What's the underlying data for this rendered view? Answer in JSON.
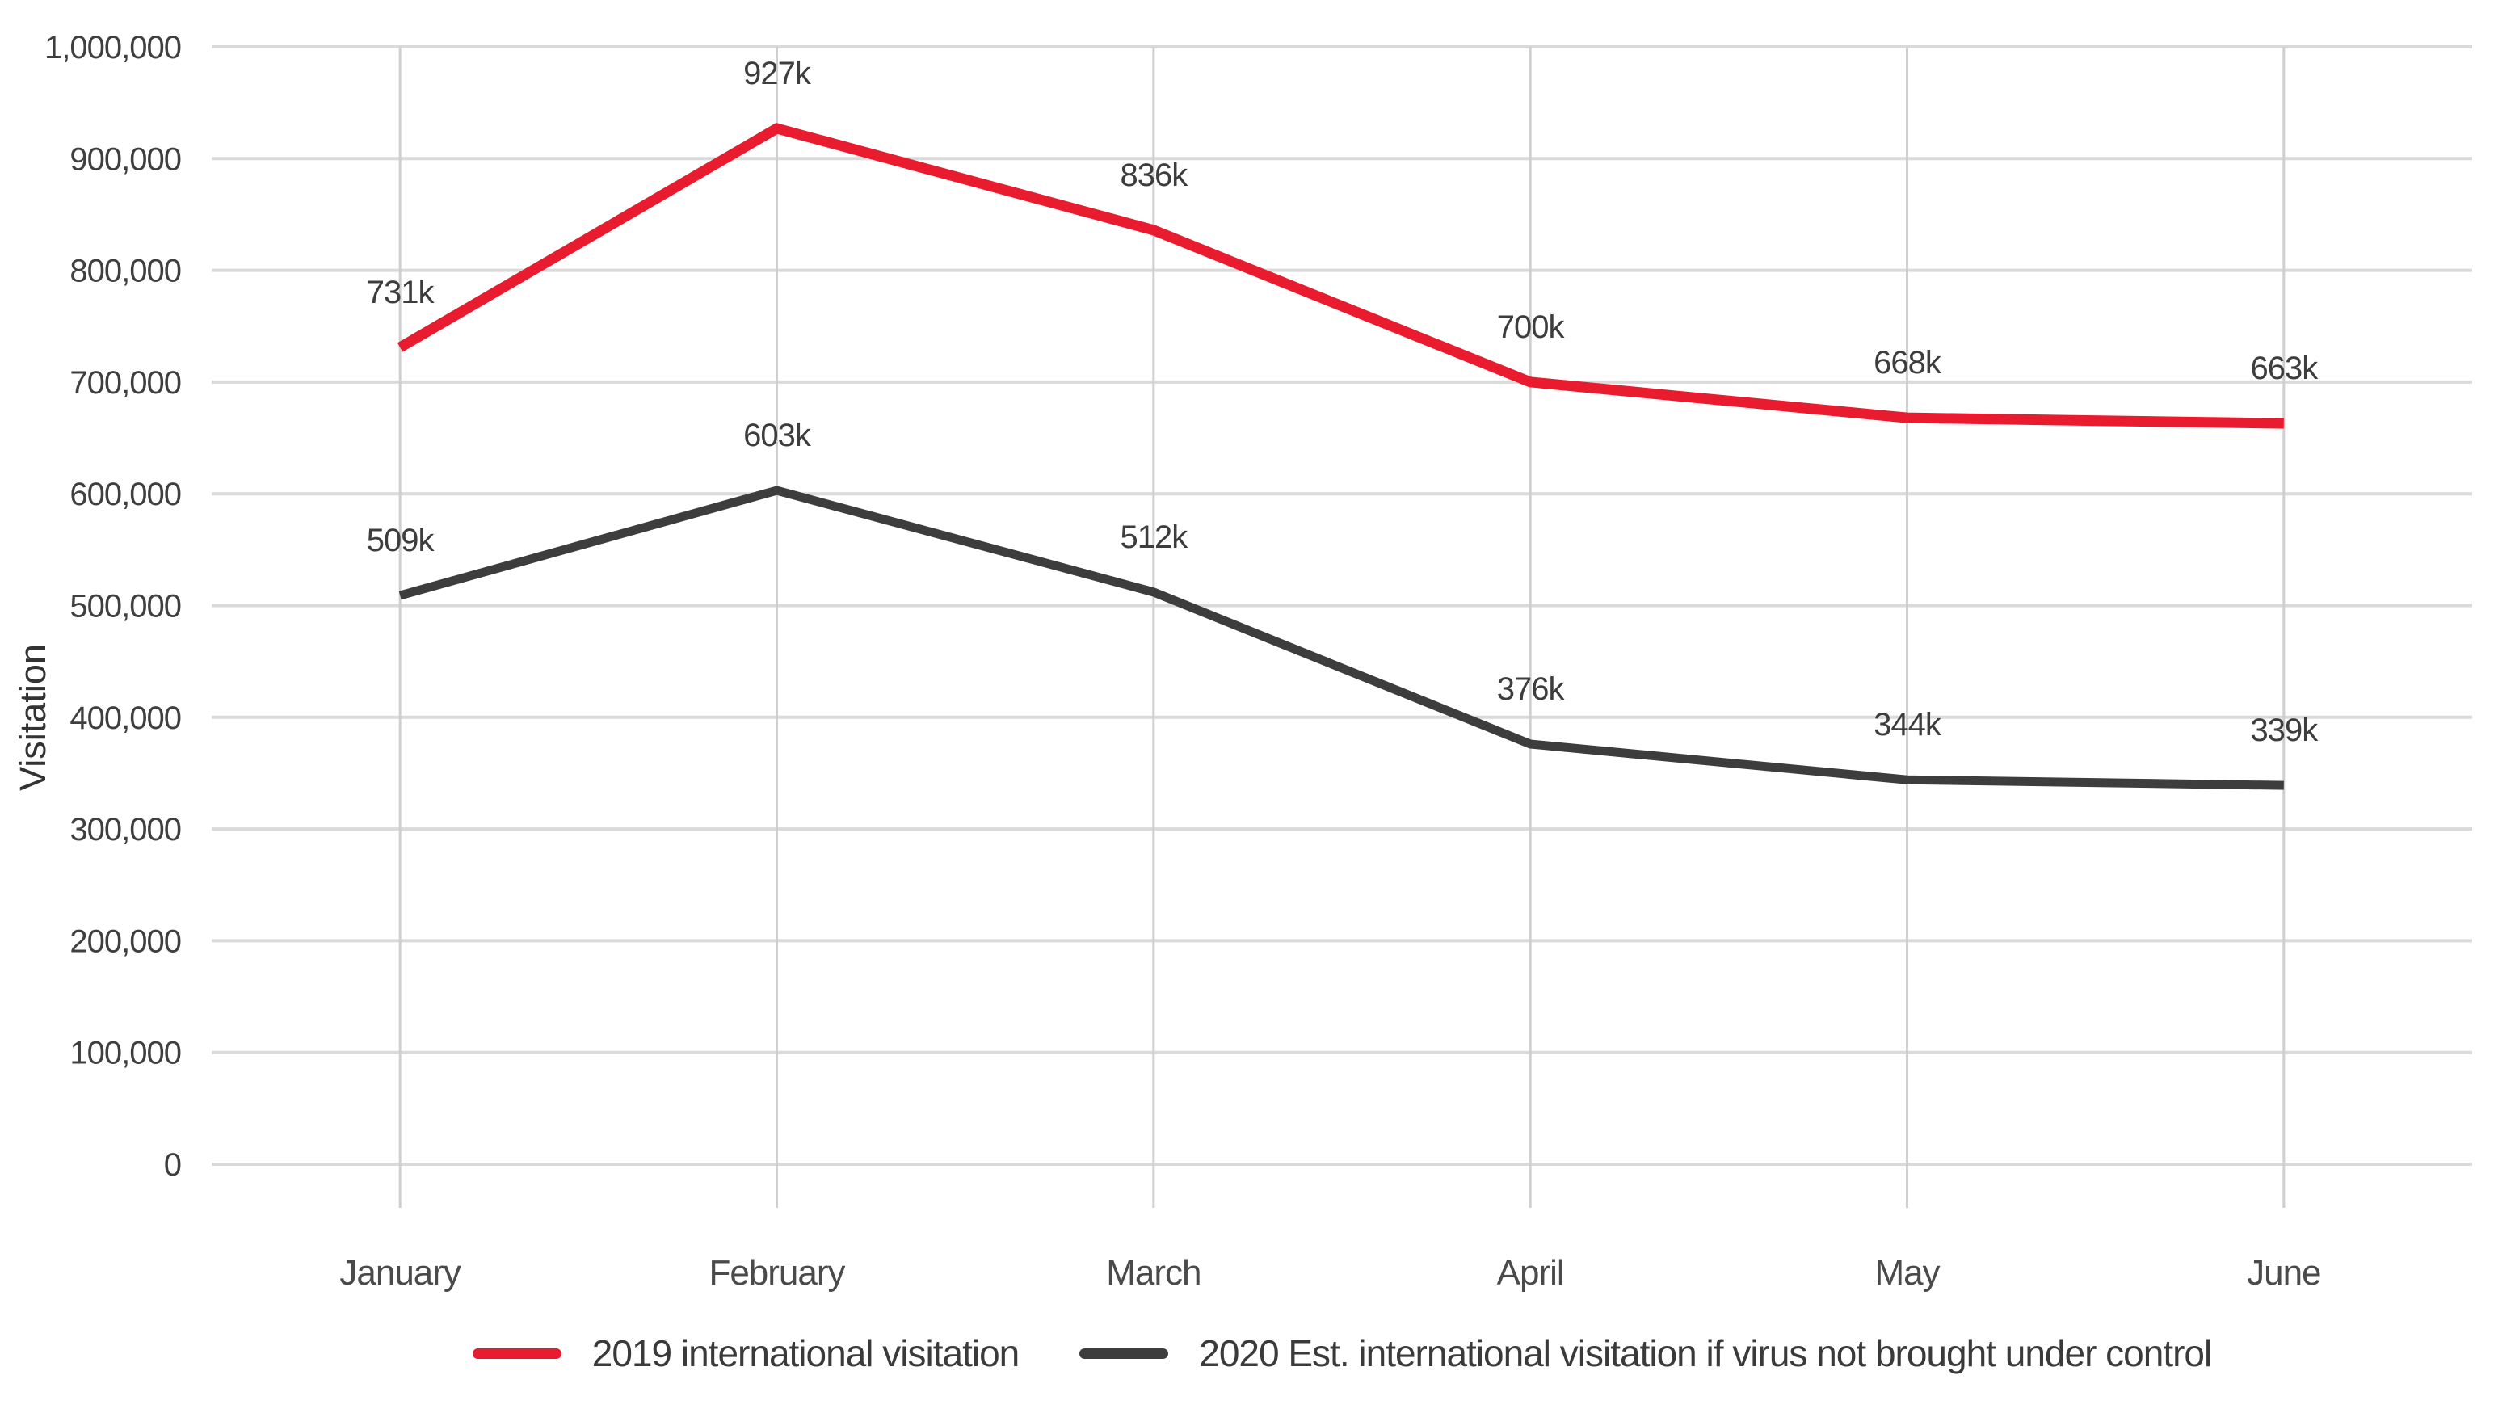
{
  "chart_data": {
    "type": "line",
    "title": "",
    "xlabel": "",
    "ylabel": "Visitation",
    "categories": [
      "January",
      "February",
      "March",
      "April",
      "May",
      "June"
    ],
    "ylim": [
      0,
      1000000
    ],
    "ytick_interval": 100000,
    "ytick_labels": [
      "0",
      "100,000",
      "200,000",
      "300,000",
      "400,000",
      "500,000",
      "600,000",
      "700,000",
      "800,000",
      "900,000",
      "1,000,000"
    ],
    "grid": true,
    "legend_position": "bottom",
    "series": [
      {
        "name": "2019 international visitation",
        "color": "#e81c2e",
        "values": [
          731000,
          927000,
          836000,
          700000,
          668000,
          663000
        ],
        "point_labels": [
          "731k",
          "927k",
          "836k",
          "700k",
          "668k",
          "663k"
        ]
      },
      {
        "name": "2020 Est. international visitation if virus not brought under control",
        "color": "#3d3d3d",
        "values": [
          509000,
          603000,
          512000,
          376000,
          344000,
          339000
        ],
        "point_labels": [
          "509k",
          "603k",
          "512k",
          "376k",
          "344k",
          "339k"
        ]
      }
    ]
  }
}
